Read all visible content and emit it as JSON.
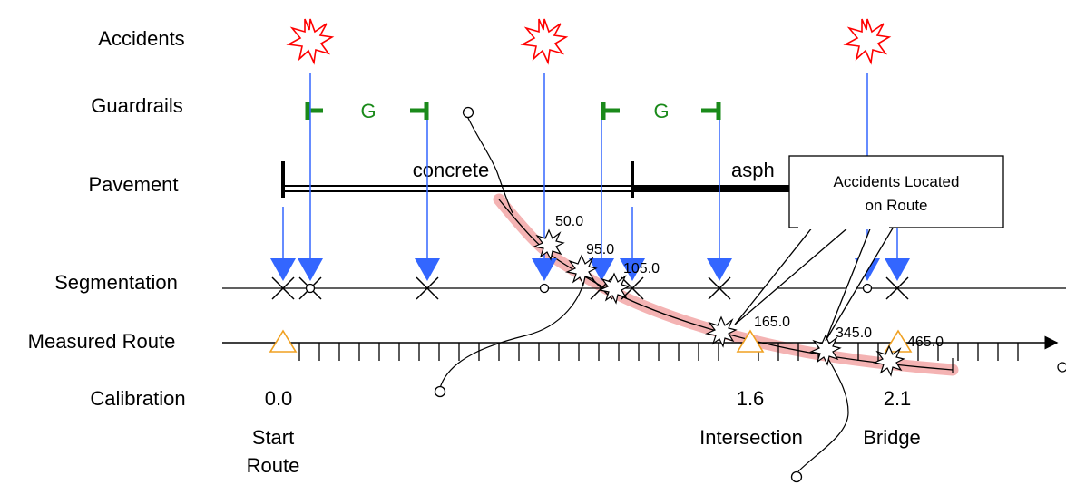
{
  "rows": {
    "accidents": "Accidents",
    "guardrails": "Guardrails",
    "pavement": "Pavement",
    "segmentation": "Segmentation",
    "measured_route": "Measured Route",
    "calibration": "Calibration"
  },
  "guardrail_label": "G",
  "pavement_types": [
    "concrete",
    "asph"
  ],
  "callout": {
    "line1": "Accidents Located",
    "line2": "on Route"
  },
  "accident_measures": [
    "50.0",
    "95.0",
    "105.0",
    "165.0",
    "345.0",
    "465.0"
  ],
  "calibration_values": [
    "0.0",
    "1.6",
    "2.1"
  ],
  "landmarks": {
    "start": {
      "line1": "Start",
      "line2": "Route"
    },
    "intersection": "Intersection",
    "bridge": "Bridge"
  },
  "colors": {
    "accident": "#ff0000",
    "guardrail": "#1a8a1a",
    "arrow": "#3366ff",
    "highlight": "#f4b3b3",
    "calibration": "#f0a020"
  }
}
